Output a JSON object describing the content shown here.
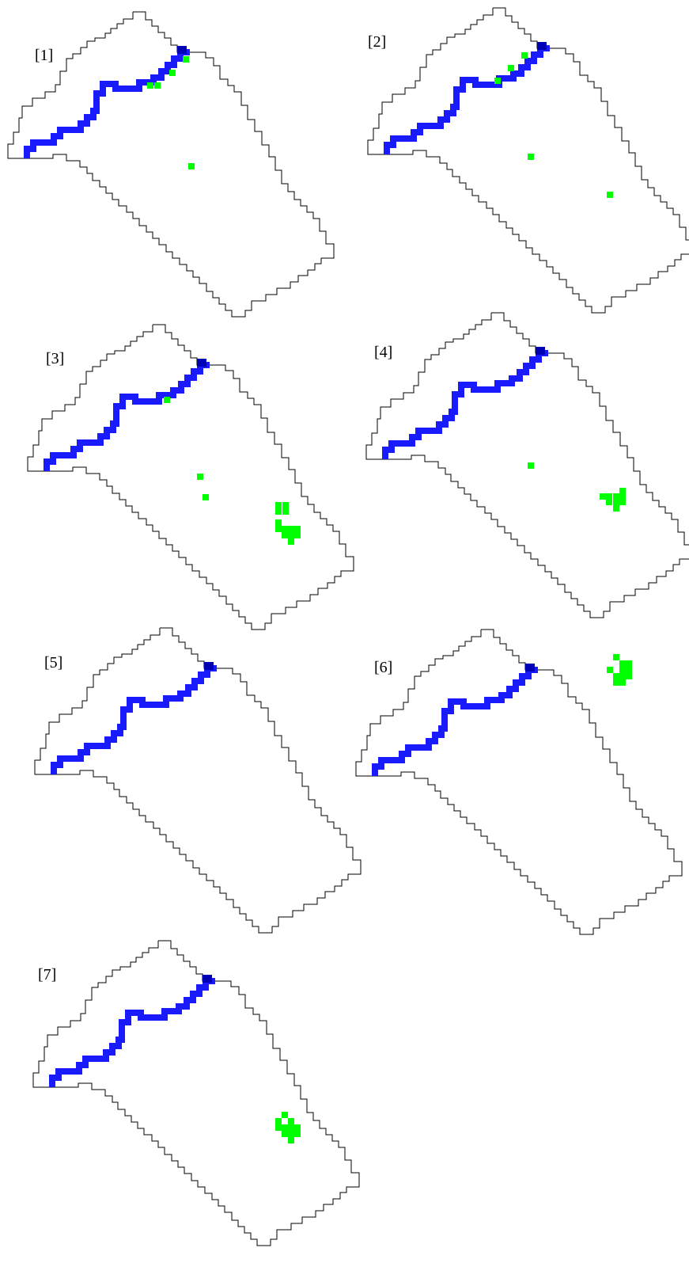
{
  "colors": {
    "outline": "#000000",
    "channel": "#1a1aff",
    "channel_dark": "#0000b4",
    "patch": "#00ff00",
    "background": "#ffffff"
  },
  "panels": [
    {
      "label": "[1]",
      "patches": [
        {
          "cells": [
            [
              235,
              75
            ]
          ]
        },
        {
          "cells": [
            [
              218,
              92
            ]
          ]
        },
        {
          "cells": [
            [
              190,
              108
            ],
            [
              199,
              108
            ]
          ]
        },
        {
          "cells": [
            [
              242,
              210
            ]
          ]
        }
      ]
    },
    {
      "label": "[2]",
      "patches": [
        {
          "cells": [
            [
              663,
              70
            ]
          ]
        },
        {
          "cells": [
            [
              646,
              86
            ]
          ]
        },
        {
          "cells": [
            [
              629,
              102
            ]
          ]
        },
        {
          "cells": [
            [
              671,
              198
            ]
          ]
        },
        {
          "cells": [
            [
              771,
              246
            ]
          ]
        }
      ]
    },
    {
      "label": "[3]",
      "patches": [
        {
          "cells": [
            [
              211,
              505
            ]
          ]
        },
        {
          "cells": [
            [
              253,
              602
            ]
          ]
        },
        {
          "cells": [
            [
              352,
              638
            ],
            [
              361,
              638
            ],
            [
              352,
              646
            ],
            [
              361,
              646
            ]
          ]
        }
      ]
    },
    {
      "label": "[4]",
      "patches": [
        {
          "cells": [
            [
              671,
              588
            ]
          ]
        },
        {
          "cells": [
            [
              787,
              620
            ],
            [
              762,
              627
            ],
            [
              770,
              627
            ],
            [
              779,
              627
            ],
            [
              787,
              627
            ],
            [
              770,
              634
            ],
            [
              779,
              634
            ],
            [
              787,
              634
            ],
            [
              779,
              642
            ]
          ]
        }
      ]
    },
    {
      "label": "[5]",
      "patches": [
        {
          "cells": [
            [
              260,
              628
            ]
          ]
        },
        {
          "cells": [
            [
              352,
              660
            ],
            [
              360,
              668
            ],
            [
              352,
              668
            ],
            [
              368,
              668
            ],
            [
              376,
              668
            ],
            [
              360,
              676
            ],
            [
              368,
              676
            ],
            [
              376,
              676
            ],
            [
              368,
              684
            ]
          ]
        }
      ]
    },
    {
      "label": "[6]",
      "patches": [
        {
          "cells": [
            [
              779,
              830
            ],
            [
              787,
              838
            ],
            [
              795,
              838
            ],
            [
              771,
              846
            ],
            [
              787,
              846
            ],
            [
              795,
              846
            ],
            [
              779,
              854
            ],
            [
              787,
              854
            ],
            [
              795,
              854
            ],
            [
              779,
              862
            ],
            [
              787,
              862
            ]
          ]
        }
      ]
    },
    {
      "label": "[7]",
      "patches": [
        {
          "cells": [
            [
              360,
              1408
            ],
            [
              352,
              1416
            ],
            [
              368,
              1416
            ],
            [
              352,
              1424
            ],
            [
              360,
              1424
            ],
            [
              368,
              1424
            ],
            [
              376,
              1424
            ],
            [
              360,
              1432
            ],
            [
              368,
              1432
            ],
            [
              376,
              1432
            ],
            [
              368,
              1440
            ]
          ]
        }
      ]
    }
  ]
}
